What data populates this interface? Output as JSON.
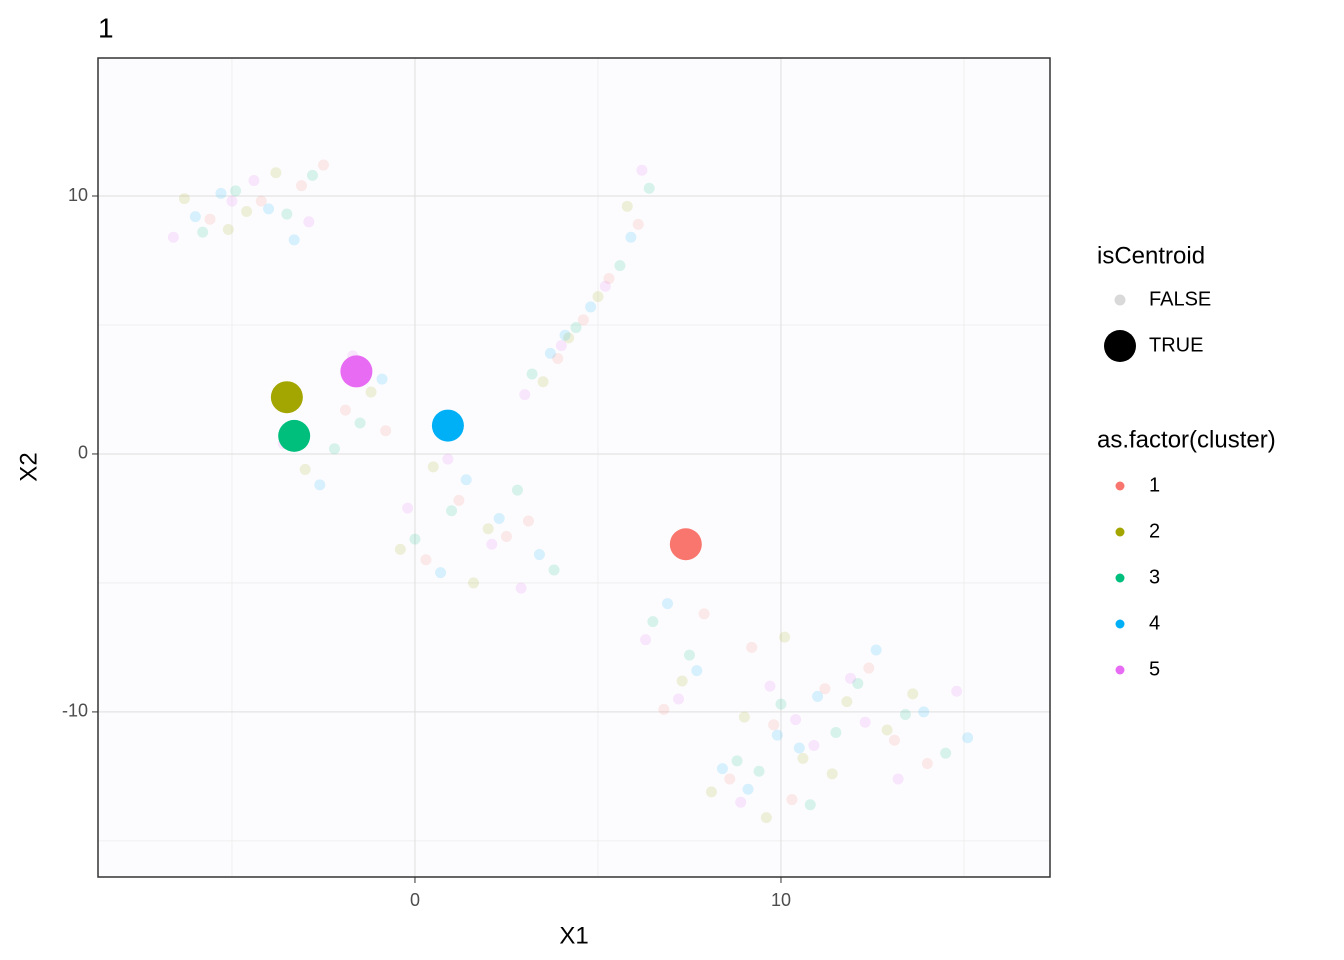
{
  "chart_data": {
    "type": "scatter",
    "title": "1",
    "x_label": "X1",
    "y_label": "X2",
    "xlim": [
      -8.66,
      17.35
    ],
    "ylim": [
      -16.4,
      15.35
    ],
    "xticks": [
      0,
      10
    ],
    "yticks": [
      -10,
      0,
      10
    ],
    "x_minor_grid": [
      -5,
      5,
      15
    ],
    "y_minor_grid": [
      -15,
      -5,
      5
    ],
    "grid": true,
    "point_opacity": 0.15,
    "legends": [
      {
        "title": "isCentroid",
        "labels": [
          "FALSE",
          "TRUE"
        ]
      },
      {
        "title": "as.factor(cluster)"
      }
    ],
    "series": [
      {
        "name": "1",
        "color": "#F8766D",
        "x": [
          -4.2,
          -3.1,
          -5.6,
          -2.5,
          4.6,
          5.3,
          6.1,
          3.9,
          1.2,
          2.5,
          -0.8,
          0.3,
          3.1,
          -1.9,
          9.8,
          11.2,
          8.6,
          12.4,
          10.3,
          7.9,
          13.1,
          9.2,
          6.8,
          14.0
        ],
        "y": [
          9.8,
          10.4,
          9.1,
          11.2,
          5.2,
          6.8,
          8.9,
          3.7,
          -1.8,
          -3.2,
          0.9,
          -4.1,
          -2.6,
          1.7,
          -10.5,
          -9.1,
          -12.6,
          -8.3,
          -13.4,
          -6.2,
          -11.1,
          -7.5,
          -9.9,
          -12.0
        ],
        "centroid": {
          "x": 7.4,
          "y": -3.5
        }
      },
      {
        "name": "2",
        "color": "#A3A500",
        "x": [
          -5.1,
          -3.8,
          -4.6,
          -6.3,
          5.0,
          4.2,
          5.8,
          3.5,
          0.5,
          -1.2,
          2.0,
          1.6,
          -3.0,
          -0.4,
          10.6,
          9.0,
          11.8,
          8.1,
          12.9,
          10.1,
          7.3,
          13.6,
          9.6,
          11.4
        ],
        "y": [
          8.7,
          10.9,
          9.4,
          9.9,
          6.1,
          4.5,
          9.6,
          2.8,
          -0.5,
          2.4,
          -2.9,
          -5.0,
          -0.6,
          -3.7,
          -11.8,
          -10.2,
          -9.6,
          -13.1,
          -10.7,
          -7.1,
          -8.8,
          -9.3,
          -14.1,
          -12.4
        ],
        "centroid": {
          "x": -3.5,
          "y": 2.2
        }
      },
      {
        "name": "3",
        "color": "#00BF7D",
        "x": [
          -4.9,
          -3.5,
          -5.8,
          -2.8,
          4.4,
          5.6,
          6.4,
          3.2,
          1.0,
          2.8,
          -1.5,
          0.0,
          3.8,
          -2.2,
          10.0,
          11.5,
          8.8,
          12.1,
          9.4,
          7.5,
          13.4,
          10.8,
          6.5,
          14.5
        ],
        "y": [
          10.2,
          9.3,
          8.6,
          10.8,
          4.9,
          7.3,
          10.3,
          3.1,
          -2.2,
          -1.4,
          1.2,
          -3.3,
          -4.5,
          0.2,
          -9.7,
          -10.8,
          -11.9,
          -8.9,
          -12.3,
          -7.8,
          -10.1,
          -13.6,
          -6.5,
          -11.6
        ],
        "centroid": {
          "x": -3.3,
          "y": 0.7
        }
      },
      {
        "name": "4",
        "color": "#00B0F6",
        "x": [
          -4.0,
          -5.3,
          -3.3,
          -6.0,
          4.8,
          3.7,
          5.9,
          4.1,
          1.4,
          2.3,
          -0.9,
          0.7,
          3.4,
          -2.6,
          9.9,
          11.0,
          8.4,
          12.6,
          10.5,
          7.7,
          13.9,
          9.1,
          6.9,
          15.1
        ],
        "y": [
          9.5,
          10.1,
          8.3,
          9.2,
          5.7,
          3.9,
          8.4,
          4.6,
          -1.0,
          -2.5,
          2.9,
          -4.6,
          -3.9,
          -1.2,
          -10.9,
          -9.4,
          -12.2,
          -7.6,
          -11.4,
          -8.4,
          -10.0,
          -13.0,
          -5.8,
          -11.0
        ],
        "centroid": {
          "x": 0.9,
          "y": 1.1
        }
      },
      {
        "name": "5",
        "color": "#E76BF3",
        "x": [
          -4.4,
          -2.9,
          -5.0,
          -6.6,
          5.2,
          4.0,
          6.2,
          3.0,
          0.9,
          2.1,
          -1.7,
          -0.2,
          2.9,
          -3.6,
          10.4,
          11.9,
          8.9,
          12.3,
          9.7,
          7.2,
          13.2,
          10.9,
          6.3,
          14.8
        ],
        "y": [
          10.6,
          9.0,
          9.8,
          8.4,
          6.5,
          4.2,
          11.0,
          2.3,
          -0.2,
          -3.5,
          3.8,
          -2.1,
          -5.2,
          0.4,
          -10.3,
          -8.7,
          -13.5,
          -10.4,
          -9.0,
          -9.5,
          -12.6,
          -11.3,
          -7.2,
          -9.2
        ],
        "centroid": {
          "x": -1.6,
          "y": 3.2
        }
      }
    ]
  }
}
